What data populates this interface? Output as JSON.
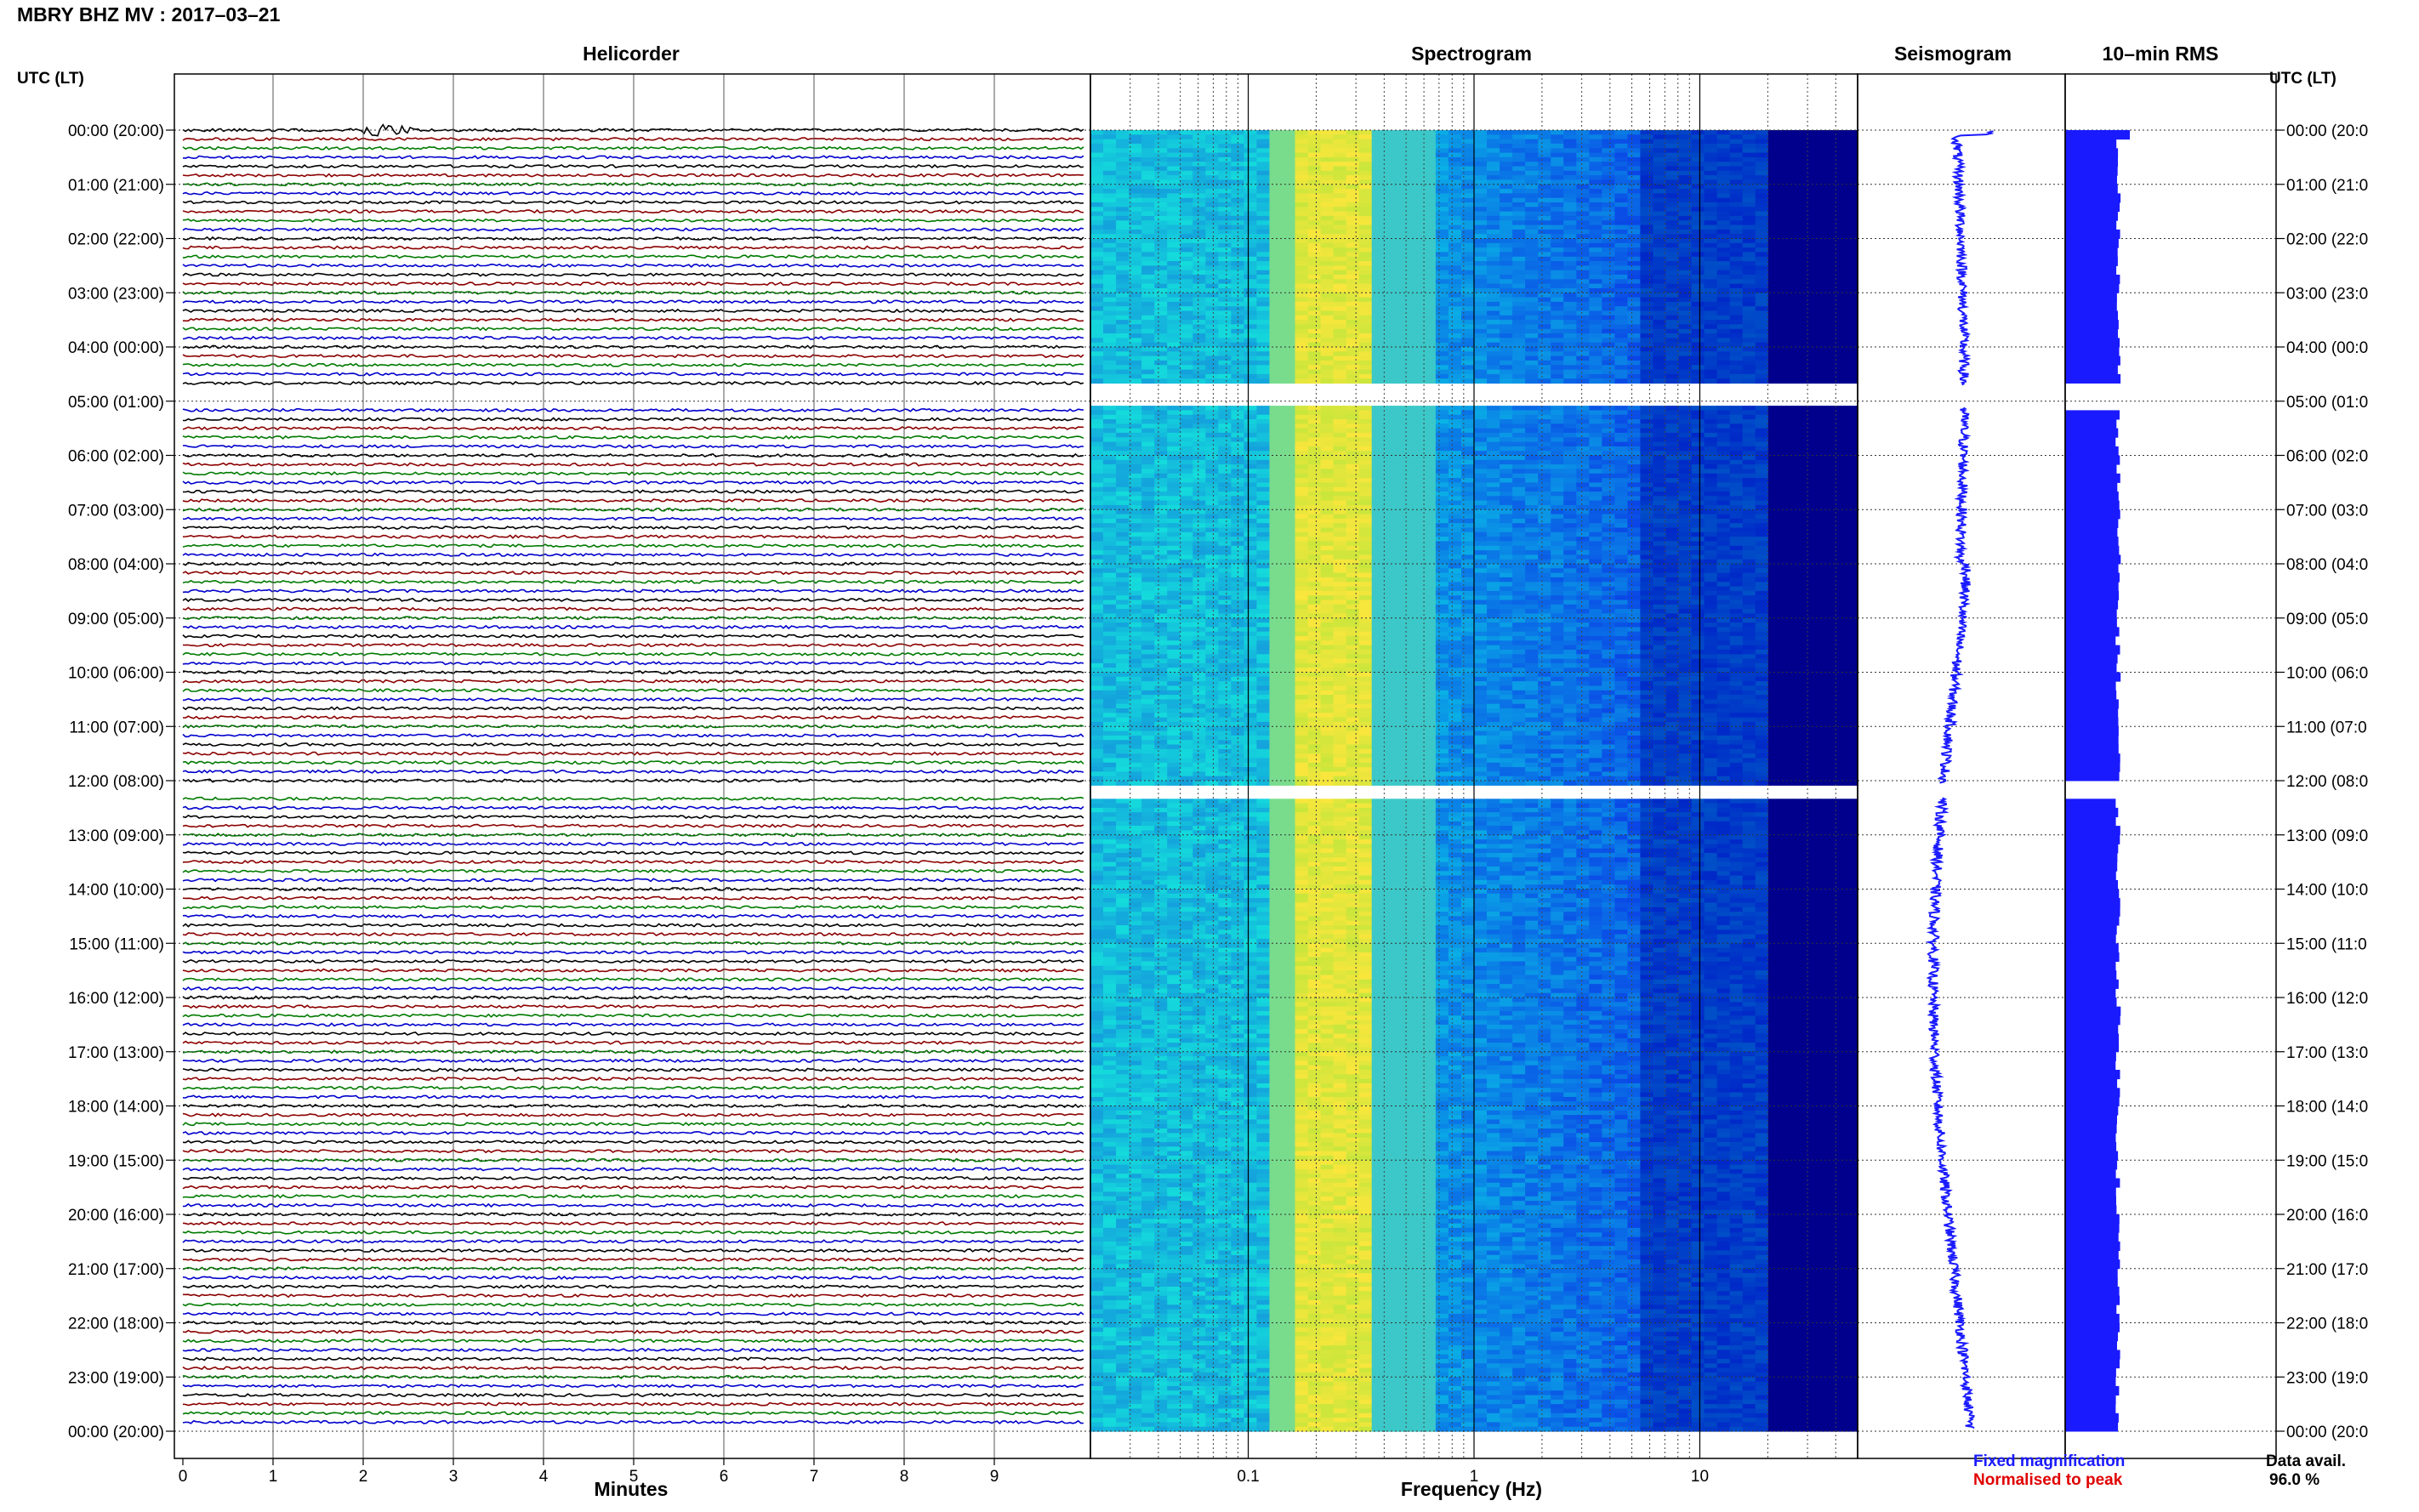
{
  "title": "MBRY BHZ MV : 2017–03–21",
  "panels": {
    "helicorder": "Helicorder",
    "spectrogram": "Spectrogram",
    "seismogram": "Seismogram",
    "rms": "10–min RMS"
  },
  "utc_label_left": "UTC (LT)",
  "utc_label_right": "UTC (LT)",
  "xlabel_minutes": "Minutes",
  "xlabel_frequency": "Frequency (Hz)",
  "legend": {
    "fixed": "Fixed magnification",
    "normalised": "Normalised to peak",
    "fixed_color": "#1a1aff",
    "normalised_color": "#e00000"
  },
  "data_avail_label": "Data avail.",
  "data_avail_value": "96.0 %",
  "chart_data": {
    "type": "helicorder",
    "date": "2017–03–21",
    "station": "MBRY BHZ MV",
    "time_ticks_left": [
      "00:00 (20:00)",
      "01:00 (21:00)",
      "02:00 (22:00)",
      "03:00 (23:00)",
      "04:00 (00:00)",
      "05:00 (01:00)",
      "06:00 (02:00)",
      "07:00 (03:00)",
      "08:00 (04:00)",
      "09:00 (05:00)",
      "10:00 (06:00)",
      "11:00 (07:00)",
      "12:00 (08:00)",
      "13:00 (09:00)",
      "14:00 (10:00)",
      "15:00 (11:00)",
      "16:00 (12:00)",
      "17:00 (13:00)",
      "18:00 (14:00)",
      "19:00 (15:00)",
      "20:00 (16:00)",
      "21:00 (17:00)",
      "22:00 (18:00)",
      "23:00 (19:00)",
      "00:00 (20:00)"
    ],
    "time_ticks_right": [
      "00:00 (20:0",
      "01:00 (21:0",
      "02:00 (22:0",
      "03:00 (23:0",
      "04:00 (00:0",
      "05:00 (01:0",
      "06:00 (02:0",
      "07:00 (03:0",
      "08:00 (04:0",
      "09:00 (05:0",
      "10:00 (06:0",
      "11:00 (07:0",
      "12:00 (08:0",
      "13:00 (09:0",
      "14:00 (10:0",
      "15:00 (11:0",
      "16:00 (12:0",
      "17:00 (13:0",
      "18:00 (14:0",
      "19:00 (15:0",
      "20:00 (16:0",
      "21:00 (17:0",
      "22:00 (18:0",
      "23:00 (19:0",
      "00:00 (20:0"
    ],
    "minute_ticks": [
      "0",
      "1",
      "2",
      "3",
      "4",
      "5",
      "6",
      "7",
      "8",
      "9"
    ],
    "minute_range": [
      0,
      10
    ],
    "freq_ticks": [
      "0.1",
      "1",
      "10"
    ],
    "freq_range": [
      0.02,
      50
    ],
    "freq_scale": "log",
    "hours_range": [
      0,
      24
    ],
    "trace_colors": [
      "#000000",
      "#8b0000",
      "#007a00",
      "#0000cc"
    ],
    "traces_per_hour": 6,
    "gaps_hours": [
      [
        4.7,
        5.1
      ],
      [
        12.05,
        12.3
      ]
    ],
    "big_event_hour": 0.0,
    "big_event_minute": 2.2,
    "data_availability_percent": 96.0
  }
}
